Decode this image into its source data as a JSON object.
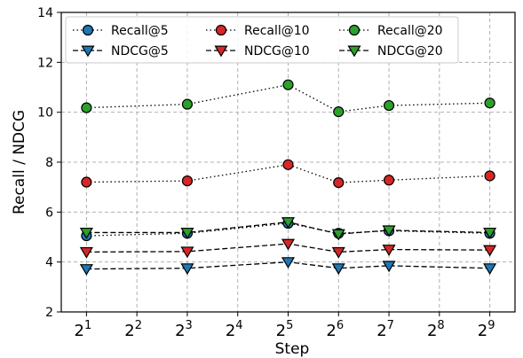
{
  "chart_data": {
    "type": "line",
    "xlabel": "Step",
    "ylabel": "Recall / NDCG",
    "x_scale": "log2",
    "x": [
      2,
      8,
      32,
      64,
      128,
      512
    ],
    "xticks": [
      {
        "value": 2,
        "base": "2",
        "exp": "1"
      },
      {
        "value": 4,
        "base": "2",
        "exp": "2"
      },
      {
        "value": 8,
        "base": "2",
        "exp": "3"
      },
      {
        "value": 16,
        "base": "2",
        "exp": "4"
      },
      {
        "value": 32,
        "base": "2",
        "exp": "5"
      },
      {
        "value": 64,
        "base": "2",
        "exp": "6"
      },
      {
        "value": 128,
        "base": "2",
        "exp": "7"
      },
      {
        "value": 256,
        "base": "2",
        "exp": "8"
      },
      {
        "value": 512,
        "base": "2",
        "exp": "9"
      }
    ],
    "ylim": [
      2,
      14
    ],
    "yticks": [
      "2",
      "4",
      "6",
      "8",
      "10",
      "12",
      "14"
    ],
    "grid": true,
    "legend_position": "top",
    "series": [
      {
        "name": "Recall@5",
        "values": [
          5.05,
          5.15,
          5.55,
          5.15,
          5.25,
          5.15
        ],
        "color": "#1f77b4",
        "marker": "circle",
        "linestyle": "dotted"
      },
      {
        "name": "Recall@10",
        "values": [
          7.2,
          7.25,
          7.9,
          7.18,
          7.28,
          7.45
        ],
        "color": "#d62728",
        "marker": "circle",
        "linestyle": "dotted"
      },
      {
        "name": "Recall@20",
        "values": [
          10.18,
          10.32,
          11.1,
          10.02,
          10.27,
          10.37
        ],
        "color": "#2ca02c",
        "marker": "circle",
        "linestyle": "dotted"
      },
      {
        "name": "NDCG@5",
        "values": [
          3.72,
          3.75,
          4.0,
          3.75,
          3.85,
          3.75
        ],
        "color": "#1f77b4",
        "marker": "triangle",
        "linestyle": "dashed"
      },
      {
        "name": "NDCG@10",
        "values": [
          4.4,
          4.42,
          4.73,
          4.4,
          4.5,
          4.48
        ],
        "color": "#d62728",
        "marker": "triangle",
        "linestyle": "dashed"
      },
      {
        "name": "NDCG@20",
        "values": [
          5.18,
          5.18,
          5.6,
          5.12,
          5.27,
          5.18
        ],
        "color": "#2ca02c",
        "marker": "triangle",
        "linestyle": "dashed"
      }
    ]
  }
}
